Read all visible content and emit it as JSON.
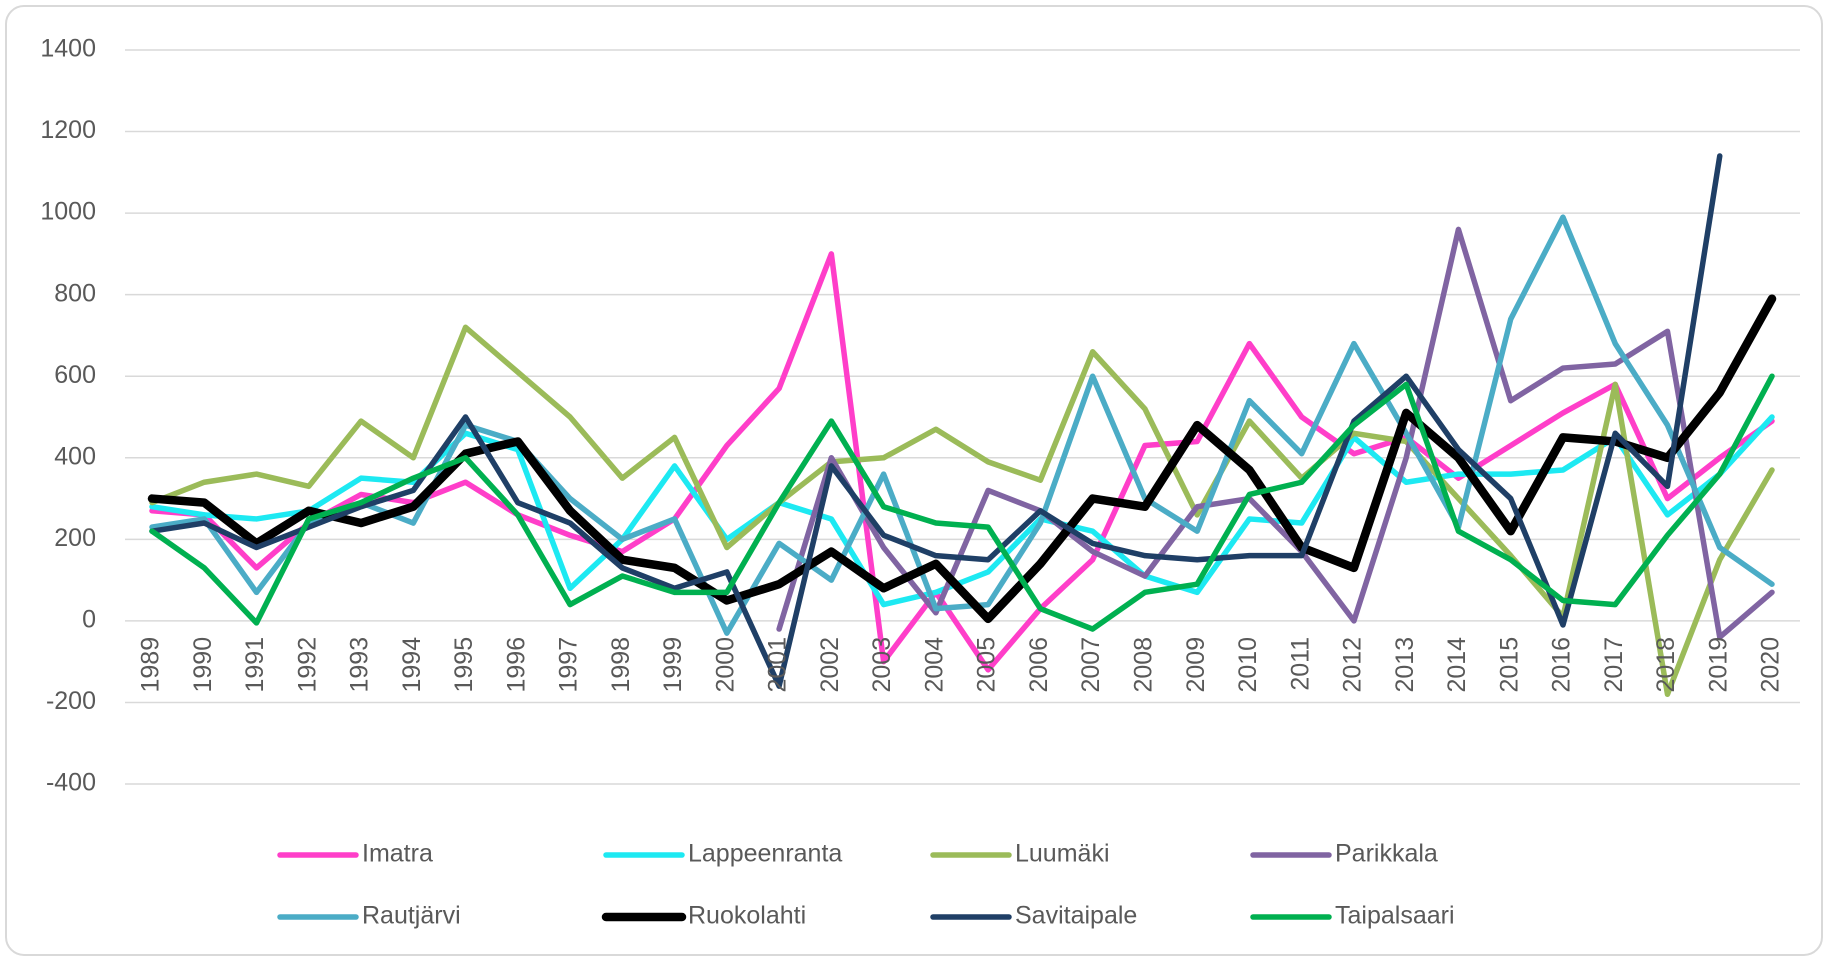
{
  "chart_data": {
    "type": "line",
    "categories": [
      "1989",
      "1990",
      "1991",
      "1992",
      "1993",
      "1994",
      "1995",
      "1996",
      "1997",
      "1998",
      "1999",
      "2000",
      "2001",
      "2002",
      "2003",
      "2004",
      "2005",
      "2006",
      "2007",
      "2008",
      "2009",
      "2010",
      "2011",
      "2012",
      "2013",
      "2014",
      "2015",
      "2016",
      "2017",
      "2018",
      "2019",
      "2020"
    ],
    "series": [
      {
        "name": "Imatra",
        "color": "#ff3ec9",
        "values": [
          270,
          260,
          130,
          240,
          310,
          290,
          340,
          260,
          210,
          170,
          250,
          430,
          570,
          900,
          -100,
          70,
          -120,
          30,
          150,
          430,
          440,
          680,
          500,
          410,
          450,
          350,
          430,
          510,
          580,
          300,
          400,
          490
        ]
      },
      {
        "name": "Lappeenranta",
        "color": "#1de9f2",
        "values": [
          280,
          260,
          250,
          270,
          350,
          340,
          460,
          420,
          80,
          200,
          380,
          200,
          290,
          250,
          40,
          70,
          120,
          250,
          220,
          110,
          70,
          250,
          240,
          450,
          340,
          360,
          360,
          370,
          450,
          260,
          360,
          500
        ]
      },
      {
        "name": "Luumäki",
        "color": "#9bbb59",
        "values": [
          290,
          340,
          360,
          330,
          490,
          400,
          720,
          610,
          500,
          350,
          450,
          180,
          290,
          390,
          400,
          470,
          390,
          345,
          660,
          520,
          260,
          490,
          350,
          460,
          440,
          300,
          160,
          10,
          580,
          -180,
          150,
          370
        ]
      },
      {
        "name": "Parikkala",
        "color": "#8064a2",
        "values": [
          null,
          null,
          null,
          null,
          null,
          null,
          null,
          null,
          null,
          null,
          null,
          null,
          -20,
          400,
          180,
          20,
          320,
          270,
          170,
          110,
          280,
          300,
          170,
          0,
          400,
          960,
          540,
          620,
          630,
          710,
          -40,
          70
        ]
      },
      {
        "name": "Rautjärvi",
        "color": "#4bacc6",
        "values": [
          230,
          250,
          70,
          240,
          290,
          240,
          480,
          440,
          300,
          200,
          250,
          -30,
          190,
          100,
          360,
          30,
          40,
          240,
          600,
          300,
          220,
          540,
          410,
          680,
          460,
          230,
          740,
          990,
          680,
          480,
          180,
          90
        ]
      },
      {
        "name": "Ruokolahti",
        "color": "#000000",
        "values": [
          300,
          290,
          190,
          270,
          240,
          280,
          410,
          440,
          270,
          150,
          130,
          50,
          90,
          170,
          80,
          140,
          5,
          140,
          300,
          280,
          480,
          370,
          180,
          130,
          510,
          400,
          220,
          450,
          440,
          400,
          560,
          790
        ]
      },
      {
        "name": "Savitaipale",
        "color": "#1f3f66",
        "values": [
          220,
          240,
          180,
          230,
          280,
          320,
          500,
          290,
          240,
          130,
          80,
          120,
          -160,
          380,
          210,
          160,
          150,
          270,
          190,
          160,
          150,
          160,
          160,
          490,
          600,
          420,
          300,
          -10,
          460,
          330,
          1140,
          null
        ]
      },
      {
        "name": "Taipalsaari",
        "color": "#00b050",
        "values": [
          220,
          130,
          -5,
          250,
          290,
          350,
          400,
          260,
          40,
          110,
          70,
          70,
          290,
          490,
          280,
          240,
          230,
          30,
          -20,
          70,
          90,
          310,
          340,
          480,
          580,
          220,
          150,
          50,
          40,
          210,
          360,
          600
        ]
      }
    ],
    "ylim": [
      -400,
      1400
    ],
    "yticks": [
      -400,
      -200,
      0,
      200,
      400,
      600,
      800,
      1000,
      1200,
      1400
    ],
    "grid": true,
    "legend": "bottom"
  }
}
